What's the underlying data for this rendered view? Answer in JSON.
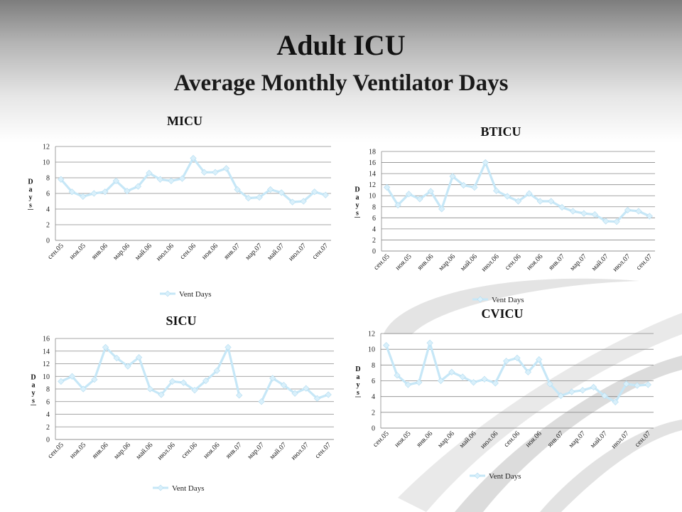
{
  "slide": {
    "title": "Adult ICU",
    "subtitle": "Average Monthly Ventilator Days"
  },
  "style": {
    "series_color": "#c6e7f7",
    "marker_color": "#d9f0fb",
    "grid_color": "#8a8a8a",
    "title_color": "#111111"
  },
  "chart_data": [
    {
      "type": "line",
      "title": "MICU",
      "ylabel": "Days",
      "ylim": [
        0,
        12
      ],
      "yticks": [
        0,
        2,
        4,
        6,
        8,
        10,
        12
      ],
      "xtick_labels": [
        "сен.05",
        "ноя.05",
        "янв.06",
        "мар.06",
        "май.06",
        "июл.06",
        "сен.06",
        "ноя.06",
        "янв.07",
        "мар.07",
        "май.07",
        "июл.07",
        "сен.07"
      ],
      "legend": "Vent Days",
      "legend_position": "bottom",
      "grid": true,
      "series": [
        {
          "name": "Vent Days",
          "values": [
            7.8,
            6.2,
            5.6,
            6.0,
            6.2,
            7.6,
            6.3,
            6.9,
            8.6,
            7.8,
            7.6,
            7.9,
            10.5,
            8.7,
            8.7,
            9.2,
            6.5,
            5.4,
            5.5,
            6.5,
            6.1,
            4.9,
            5.0,
            6.2,
            5.8
          ]
        }
      ]
    },
    {
      "type": "line",
      "title": "BTICU",
      "ylabel": "Days",
      "ylim": [
        0,
        18
      ],
      "yticks": [
        0,
        2,
        4,
        6,
        8,
        10,
        12,
        14,
        16,
        18
      ],
      "xtick_labels": [
        "сен.05",
        "ноя.05",
        "янв.06",
        "мар.06",
        "май.06",
        "июл.06",
        "сен.06",
        "ноя.06",
        "янв.07",
        "мар.07",
        "май.07",
        "июл.07",
        "сен.07"
      ],
      "legend": "Vent Days",
      "legend_position": "bottom",
      "grid": true,
      "series": [
        {
          "name": "Vent Days",
          "values": [
            11.5,
            8.3,
            10.3,
            9.4,
            10.8,
            7.6,
            13.5,
            11.9,
            11.5,
            16.0,
            10.9,
            9.9,
            9.0,
            10.4,
            9.0,
            9.0,
            7.9,
            7.2,
            6.8,
            6.6,
            5.4,
            5.3,
            7.4,
            7.2,
            6.3
          ]
        }
      ]
    },
    {
      "type": "line",
      "title": "SICU",
      "ylabel": "Days",
      "ylim": [
        0,
        16
      ],
      "yticks": [
        0,
        2,
        4,
        6,
        8,
        10,
        12,
        14,
        16
      ],
      "xtick_labels": [
        "сен.05",
        "ноя.05",
        "янв.06",
        "мар.06",
        "май.06",
        "июл.06",
        "сен.06",
        "ноя.06",
        "янв.07",
        "мар.07",
        "май.07",
        "июл.07",
        "сен.07"
      ],
      "legend": "Vent Days",
      "legend_position": "bottom",
      "grid": true,
      "series": [
        {
          "name": "Vent Days",
          "values": [
            9.2,
            10.0,
            8.0,
            9.5,
            14.6,
            12.9,
            11.6,
            13.0,
            8.0,
            7.1,
            9.2,
            9.0,
            7.8,
            9.3,
            10.9,
            14.6,
            7.0,
            null,
            6.0,
            9.7,
            8.6,
            7.3,
            8.1,
            6.5,
            7.1
          ]
        }
      ]
    },
    {
      "type": "line",
      "title": "CVICU",
      "ylabel": "Days",
      "ylim": [
        0,
        12
      ],
      "yticks": [
        0,
        2,
        4,
        6,
        8,
        10,
        12
      ],
      "xtick_labels": [
        "сен.05",
        "ноя.05",
        "янв.06",
        "мар.06",
        "май.06",
        "июл.06",
        "сен.06",
        "ноя.06",
        "янв.07",
        "мар.07",
        "май.07",
        "июл.07",
        "сен.07"
      ],
      "legend": "Vent Days",
      "legend_position": "bottom",
      "grid": true,
      "series": [
        {
          "name": "Vent Days",
          "values": [
            10.5,
            6.7,
            5.5,
            5.8,
            10.8,
            6.0,
            7.1,
            6.5,
            5.8,
            6.2,
            5.7,
            8.5,
            8.9,
            7.1,
            8.7,
            5.6,
            4.1,
            4.6,
            4.8,
            5.2,
            4.1,
            3.3,
            5.6,
            5.4,
            5.5
          ]
        }
      ]
    }
  ]
}
